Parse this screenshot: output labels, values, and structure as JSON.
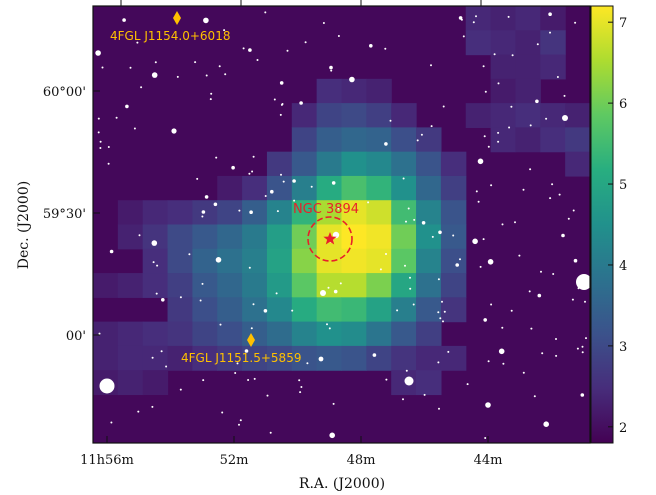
{
  "chart_data": {
    "type": "heatmap",
    "title": "",
    "xlabel": "R.A. (J2000)",
    "ylabel": "Dec. (J2000)",
    "xticks": [
      "11h56m",
      "52m",
      "48m",
      "44m"
    ],
    "yticks": [
      "60°00'",
      "59°30'",
      "00'"
    ],
    "colorbar": {
      "ticks": [
        "2",
        "3",
        "4",
        "5",
        "6",
        "7"
      ],
      "range": [
        1.8,
        7.2
      ],
      "colormap": "viridis"
    },
    "background_value": 1.9,
    "grid_size": [
      20,
      18
    ],
    "cells": [
      {
        "col": 15,
        "row": 0,
        "v": 2.4
      },
      {
        "col": 16,
        "row": 0,
        "v": 2.3
      },
      {
        "col": 17,
        "row": 0,
        "v": 2.4
      },
      {
        "col": 18,
        "row": 0,
        "v": 2.2
      },
      {
        "col": 15,
        "row": 1,
        "v": 2.5
      },
      {
        "col": 16,
        "row": 1,
        "v": 2.4
      },
      {
        "col": 17,
        "row": 1,
        "v": 2.3
      },
      {
        "col": 18,
        "row": 1,
        "v": 2.6
      },
      {
        "col": 16,
        "row": 2,
        "v": 2.3
      },
      {
        "col": 17,
        "row": 2,
        "v": 2.3
      },
      {
        "col": 18,
        "row": 2,
        "v": 2.4
      },
      {
        "col": 9,
        "row": 3,
        "v": 2.5
      },
      {
        "col": 10,
        "row": 3,
        "v": 2.4
      },
      {
        "col": 11,
        "row": 3,
        "v": 2.3
      },
      {
        "col": 16,
        "row": 3,
        "v": 2.2
      },
      {
        "col": 17,
        "row": 3,
        "v": 2.3
      },
      {
        "col": 8,
        "row": 4,
        "v": 2.4
      },
      {
        "col": 9,
        "row": 4,
        "v": 2.9
      },
      {
        "col": 10,
        "row": 4,
        "v": 3.0
      },
      {
        "col": 11,
        "row": 4,
        "v": 2.8
      },
      {
        "col": 12,
        "row": 4,
        "v": 2.4
      },
      {
        "col": 15,
        "row": 4,
        "v": 2.3
      },
      {
        "col": 16,
        "row": 4,
        "v": 2.4
      },
      {
        "col": 17,
        "row": 4,
        "v": 2.5
      },
      {
        "col": 18,
        "row": 4,
        "v": 2.4
      },
      {
        "col": 19,
        "row": 4,
        "v": 2.3
      },
      {
        "col": 8,
        "row": 5,
        "v": 2.9
      },
      {
        "col": 9,
        "row": 5,
        "v": 3.4
      },
      {
        "col": 10,
        "row": 5,
        "v": 3.6
      },
      {
        "col": 11,
        "row": 5,
        "v": 3.5
      },
      {
        "col": 12,
        "row": 5,
        "v": 3.1
      },
      {
        "col": 13,
        "row": 5,
        "v": 2.7
      },
      {
        "col": 16,
        "row": 5,
        "v": 2.4
      },
      {
        "col": 17,
        "row": 5,
        "v": 2.3
      },
      {
        "col": 18,
        "row": 5,
        "v": 2.5
      },
      {
        "col": 19,
        "row": 5,
        "v": 2.7
      },
      {
        "col": 7,
        "row": 6,
        "v": 2.7
      },
      {
        "col": 8,
        "row": 6,
        "v": 3.3
      },
      {
        "col": 9,
        "row": 6,
        "v": 4.0
      },
      {
        "col": 10,
        "row": 6,
        "v": 4.5
      },
      {
        "col": 11,
        "row": 6,
        "v": 4.3
      },
      {
        "col": 12,
        "row": 6,
        "v": 3.8
      },
      {
        "col": 13,
        "row": 6,
        "v": 3.2
      },
      {
        "col": 14,
        "row": 6,
        "v": 2.5
      },
      {
        "col": 19,
        "row": 6,
        "v": 2.4
      },
      {
        "col": 5,
        "row": 7,
        "v": 2.2
      },
      {
        "col": 6,
        "row": 7,
        "v": 2.5
      },
      {
        "col": 7,
        "row": 7,
        "v": 3.2
      },
      {
        "col": 8,
        "row": 7,
        "v": 4.1
      },
      {
        "col": 9,
        "row": 7,
        "v": 5.1
      },
      {
        "col": 10,
        "row": 7,
        "v": 5.6
      },
      {
        "col": 11,
        "row": 7,
        "v": 5.3
      },
      {
        "col": 12,
        "row": 7,
        "v": 4.5
      },
      {
        "col": 13,
        "row": 7,
        "v": 3.6
      },
      {
        "col": 14,
        "row": 7,
        "v": 2.8
      },
      {
        "col": 1,
        "row": 8,
        "v": 2.2
      },
      {
        "col": 2,
        "row": 8,
        "v": 2.4
      },
      {
        "col": 3,
        "row": 8,
        "v": 2.5
      },
      {
        "col": 4,
        "row": 8,
        "v": 2.7
      },
      {
        "col": 5,
        "row": 8,
        "v": 2.9
      },
      {
        "col": 6,
        "row": 8,
        "v": 3.4
      },
      {
        "col": 7,
        "row": 8,
        "v": 4.2
      },
      {
        "col": 8,
        "row": 8,
        "v": 5.3
      },
      {
        "col": 9,
        "row": 8,
        "v": 6.5
      },
      {
        "col": 10,
        "row": 8,
        "v": 7.0
      },
      {
        "col": 11,
        "row": 8,
        "v": 6.8
      },
      {
        "col": 12,
        "row": 8,
        "v": 5.5
      },
      {
        "col": 13,
        "row": 8,
        "v": 4.2
      },
      {
        "col": 14,
        "row": 8,
        "v": 3.2
      },
      {
        "col": 1,
        "row": 9,
        "v": 2.3
      },
      {
        "col": 2,
        "row": 9,
        "v": 2.6
      },
      {
        "col": 3,
        "row": 9,
        "v": 3.0
      },
      {
        "col": 4,
        "row": 9,
        "v": 3.3
      },
      {
        "col": 5,
        "row": 9,
        "v": 3.6
      },
      {
        "col": 6,
        "row": 9,
        "v": 4.0
      },
      {
        "col": 7,
        "row": 9,
        "v": 4.8
      },
      {
        "col": 8,
        "row": 9,
        "v": 6.0
      },
      {
        "col": 9,
        "row": 9,
        "v": 7.0
      },
      {
        "col": 10,
        "row": 9,
        "v": 7.2
      },
      {
        "col": 11,
        "row": 9,
        "v": 7.1
      },
      {
        "col": 12,
        "row": 9,
        "v": 6.0
      },
      {
        "col": 13,
        "row": 9,
        "v": 4.5
      },
      {
        "col": 14,
        "row": 9,
        "v": 3.3
      },
      {
        "col": 2,
        "row": 10,
        "v": 2.5
      },
      {
        "col": 3,
        "row": 10,
        "v": 3.0
      },
      {
        "col": 4,
        "row": 10,
        "v": 3.5
      },
      {
        "col": 5,
        "row": 10,
        "v": 3.8
      },
      {
        "col": 6,
        "row": 10,
        "v": 4.1
      },
      {
        "col": 7,
        "row": 10,
        "v": 4.9
      },
      {
        "col": 8,
        "row": 10,
        "v": 6.2
      },
      {
        "col": 9,
        "row": 10,
        "v": 7.0
      },
      {
        "col": 10,
        "row": 10,
        "v": 7.1
      },
      {
        "col": 11,
        "row": 10,
        "v": 7.0
      },
      {
        "col": 12,
        "row": 10,
        "v": 5.8
      },
      {
        "col": 13,
        "row": 10,
        "v": 4.2
      },
      {
        "col": 14,
        "row": 10,
        "v": 3.1
      },
      {
        "col": 0,
        "row": 11,
        "v": 2.2
      },
      {
        "col": 1,
        "row": 11,
        "v": 2.3
      },
      {
        "col": 2,
        "row": 11,
        "v": 2.5
      },
      {
        "col": 3,
        "row": 11,
        "v": 2.8
      },
      {
        "col": 4,
        "row": 11,
        "v": 3.3
      },
      {
        "col": 5,
        "row": 11,
        "v": 3.6
      },
      {
        "col": 6,
        "row": 11,
        "v": 4.0
      },
      {
        "col": 7,
        "row": 11,
        "v": 4.7
      },
      {
        "col": 8,
        "row": 11,
        "v": 5.8
      },
      {
        "col": 9,
        "row": 11,
        "v": 6.6
      },
      {
        "col": 10,
        "row": 11,
        "v": 6.6
      },
      {
        "col": 11,
        "row": 11,
        "v": 6.1
      },
      {
        "col": 12,
        "row": 11,
        "v": 5.0
      },
      {
        "col": 13,
        "row": 11,
        "v": 3.8
      },
      {
        "col": 14,
        "row": 11,
        "v": 2.9
      },
      {
        "col": 3,
        "row": 12,
        "v": 2.7
      },
      {
        "col": 4,
        "row": 12,
        "v": 3.1
      },
      {
        "col": 5,
        "row": 12,
        "v": 3.4
      },
      {
        "col": 6,
        "row": 12,
        "v": 3.8
      },
      {
        "col": 7,
        "row": 12,
        "v": 4.3
      },
      {
        "col": 8,
        "row": 12,
        "v": 5.1
      },
      {
        "col": 9,
        "row": 12,
        "v": 5.5
      },
      {
        "col": 10,
        "row": 12,
        "v": 5.4
      },
      {
        "col": 11,
        "row": 12,
        "v": 4.9
      },
      {
        "col": 12,
        "row": 12,
        "v": 4.1
      },
      {
        "col": 13,
        "row": 12,
        "v": 3.3
      },
      {
        "col": 14,
        "row": 12,
        "v": 2.6
      },
      {
        "col": 0,
        "row": 13,
        "v": 2.3
      },
      {
        "col": 1,
        "row": 13,
        "v": 2.4
      },
      {
        "col": 2,
        "row": 13,
        "v": 2.5
      },
      {
        "col": 3,
        "row": 13,
        "v": 2.6
      },
      {
        "col": 4,
        "row": 13,
        "v": 2.9
      },
      {
        "col": 5,
        "row": 13,
        "v": 3.1
      },
      {
        "col": 6,
        "row": 13,
        "v": 3.4
      },
      {
        "col": 7,
        "row": 13,
        "v": 3.7
      },
      {
        "col": 8,
        "row": 13,
        "v": 4.2
      },
      {
        "col": 9,
        "row": 13,
        "v": 4.5
      },
      {
        "col": 10,
        "row": 13,
        "v": 4.4
      },
      {
        "col": 11,
        "row": 13,
        "v": 3.9
      },
      {
        "col": 12,
        "row": 13,
        "v": 3.3
      },
      {
        "col": 13,
        "row": 13,
        "v": 2.8
      },
      {
        "col": 0,
        "row": 14,
        "v": 2.3
      },
      {
        "col": 1,
        "row": 14,
        "v": 2.4
      },
      {
        "col": 2,
        "row": 14,
        "v": 2.4
      },
      {
        "col": 3,
        "row": 14,
        "v": 2.3
      },
      {
        "col": 4,
        "row": 14,
        "v": 2.5
      },
      {
        "col": 5,
        "row": 14,
        "v": 2.7
      },
      {
        "col": 6,
        "row": 14,
        "v": 2.9
      },
      {
        "col": 7,
        "row": 14,
        "v": 3.0
      },
      {
        "col": 8,
        "row": 14,
        "v": 3.2
      },
      {
        "col": 9,
        "row": 14,
        "v": 3.3
      },
      {
        "col": 10,
        "row": 14,
        "v": 3.2
      },
      {
        "col": 11,
        "row": 14,
        "v": 2.9
      },
      {
        "col": 12,
        "row": 14,
        "v": 2.6
      },
      {
        "col": 13,
        "row": 14,
        "v": 2.4
      },
      {
        "col": 14,
        "row": 14,
        "v": 2.4
      },
      {
        "col": 0,
        "row": 15,
        "v": 2.2
      },
      {
        "col": 1,
        "row": 15,
        "v": 2.3
      },
      {
        "col": 2,
        "row": 15,
        "v": 2.2
      },
      {
        "col": 12,
        "row": 15,
        "v": 2.4
      },
      {
        "col": 13,
        "row": 15,
        "v": 2.5
      }
    ],
    "annotations": [
      {
        "type": "source_marker",
        "marker": "diamond",
        "label": "4FGL J1154.0+6018",
        "color": "#FFC000"
      },
      {
        "type": "source_marker",
        "marker": "diamond",
        "label": "4FGL J1151.5+5859",
        "color": "#FFC000"
      },
      {
        "type": "target",
        "marker": "star",
        "label": "NGC 3894",
        "color": "#E8202A",
        "circle": "dashed"
      }
    ],
    "stars": "white point sources"
  }
}
